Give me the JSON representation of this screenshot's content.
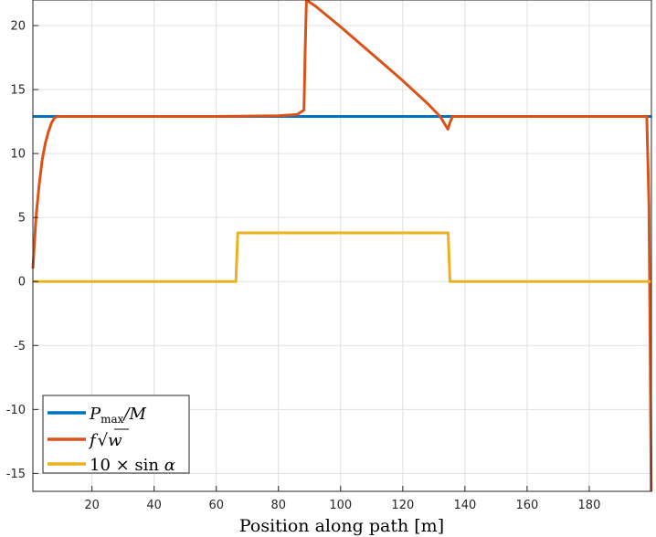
{
  "chart_data": {
    "type": "line",
    "title": "",
    "xlabel": "Position along path [m]",
    "ylabel": "",
    "xlim": [
      1,
      200
    ],
    "ylim": [
      -16.4,
      22
    ],
    "grid": true,
    "legend_position": "bottom-left",
    "x_ticks": [
      20,
      40,
      60,
      80,
      100,
      120,
      140,
      160,
      180
    ],
    "y_ticks": [
      20,
      15,
      10,
      5,
      0,
      -5,
      -10,
      -15
    ],
    "series": [
      {
        "name": "P_max/M",
        "color": "#0072BD",
        "x": [
          1,
          200
        ],
        "y": [
          12.9,
          12.9
        ]
      },
      {
        "name": "f√w",
        "color": "#D95319",
        "x": [
          1,
          2,
          3,
          4,
          5,
          6,
          7,
          8,
          9,
          20,
          40,
          60,
          80,
          86,
          88.2,
          88.6,
          89,
          92,
          100,
          110,
          120,
          128,
          132,
          134.5,
          135.3,
          136,
          140,
          160,
          180,
          198.5,
          199.2,
          199.6,
          199.9
        ],
        "y": [
          1.0,
          5.0,
          7.5,
          9.5,
          10.8,
          11.7,
          12.4,
          12.8,
          12.9,
          12.9,
          12.9,
          12.9,
          12.95,
          13.05,
          13.4,
          18.0,
          22.0,
          21.5,
          19.9,
          17.8,
          15.7,
          13.9,
          12.9,
          11.9,
          12.5,
          12.9,
          12.9,
          12.9,
          12.9,
          12.9,
          6.0,
          -5.0,
          -16.4
        ]
      },
      {
        "name": "10 × sin α",
        "color": "#EDB120",
        "x": [
          1,
          66.3,
          66.9,
          134.6,
          135.2,
          200
        ],
        "y": [
          0,
          0,
          3.8,
          3.8,
          0,
          0
        ]
      }
    ]
  },
  "legend": {
    "p_main": "P",
    "p_sub": "max",
    "p_rest": "/M",
    "f_main": "f",
    "f_rad": "√",
    "f_arg": "w",
    "s_main": "10 × sin ",
    "s_var": "α"
  }
}
